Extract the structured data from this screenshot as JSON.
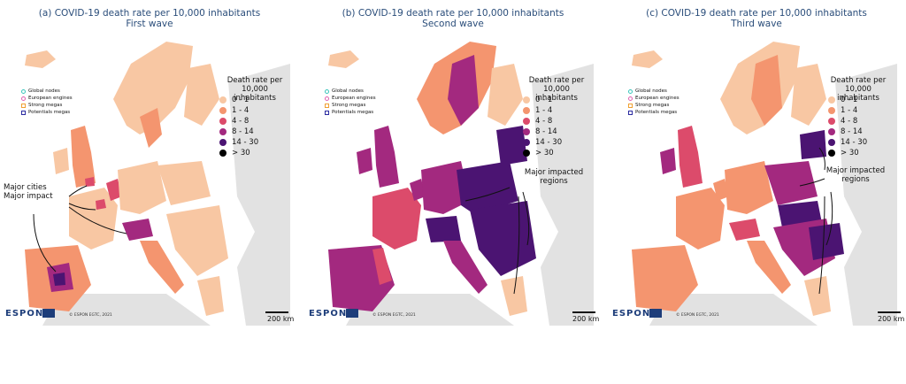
{
  "figure": {
    "scale_label": "200 km",
    "espon_logo": "ESPON",
    "copyright": "© ESPON EGTC, 2021",
    "legend": {
      "title": "Death rate per 10,000 inhabitants",
      "classes": [
        {
          "label": "0 - 1",
          "color": "#f8c7a3"
        },
        {
          "label": "1 - 4",
          "color": "#f4956f"
        },
        {
          "label": "4 - 8",
          "color": "#dc4b6b"
        },
        {
          "label": "8 - 14",
          "color": "#a3297f"
        },
        {
          "label": "14 - 30",
          "color": "#4b1472"
        },
        {
          "label": "> 30",
          "color": "#000000"
        }
      ]
    },
    "node_legend": [
      {
        "label": "Global nodes",
        "color": "#39c5bb",
        "shape": "circle"
      },
      {
        "label": "European engines",
        "color": "#e060b0",
        "shape": "circle"
      },
      {
        "label": "Strong megas",
        "color": "#f0a030",
        "shape": "square"
      },
      {
        "label": "Potentials megas",
        "color": "#2a2aa0",
        "shape": "square"
      }
    ]
  },
  "panels": [
    {
      "title_line1": "(a) COVID-19 death rate per 10,000 inhabitants",
      "title_line2": "First wave",
      "annotation": "Major cities Major impact",
      "annotation_line1": "Major cities",
      "annotation_line2": "Major impact",
      "dominant_class": "0 - 1"
    },
    {
      "title_line1": "(b) COVID-19 death rate per 10,000 inhabitants",
      "title_line2": "Second wave",
      "annotation_line1": "Major impacted",
      "annotation_line2": "regions",
      "dominant_class": "14 - 30"
    },
    {
      "title_line1": "(c) COVID-19 death rate per 10,000 inhabitants",
      "title_line2": "Third wave",
      "annotation_line1": "Major impacted",
      "annotation_line2": "regions",
      "dominant_class": "1 - 4"
    }
  ]
}
